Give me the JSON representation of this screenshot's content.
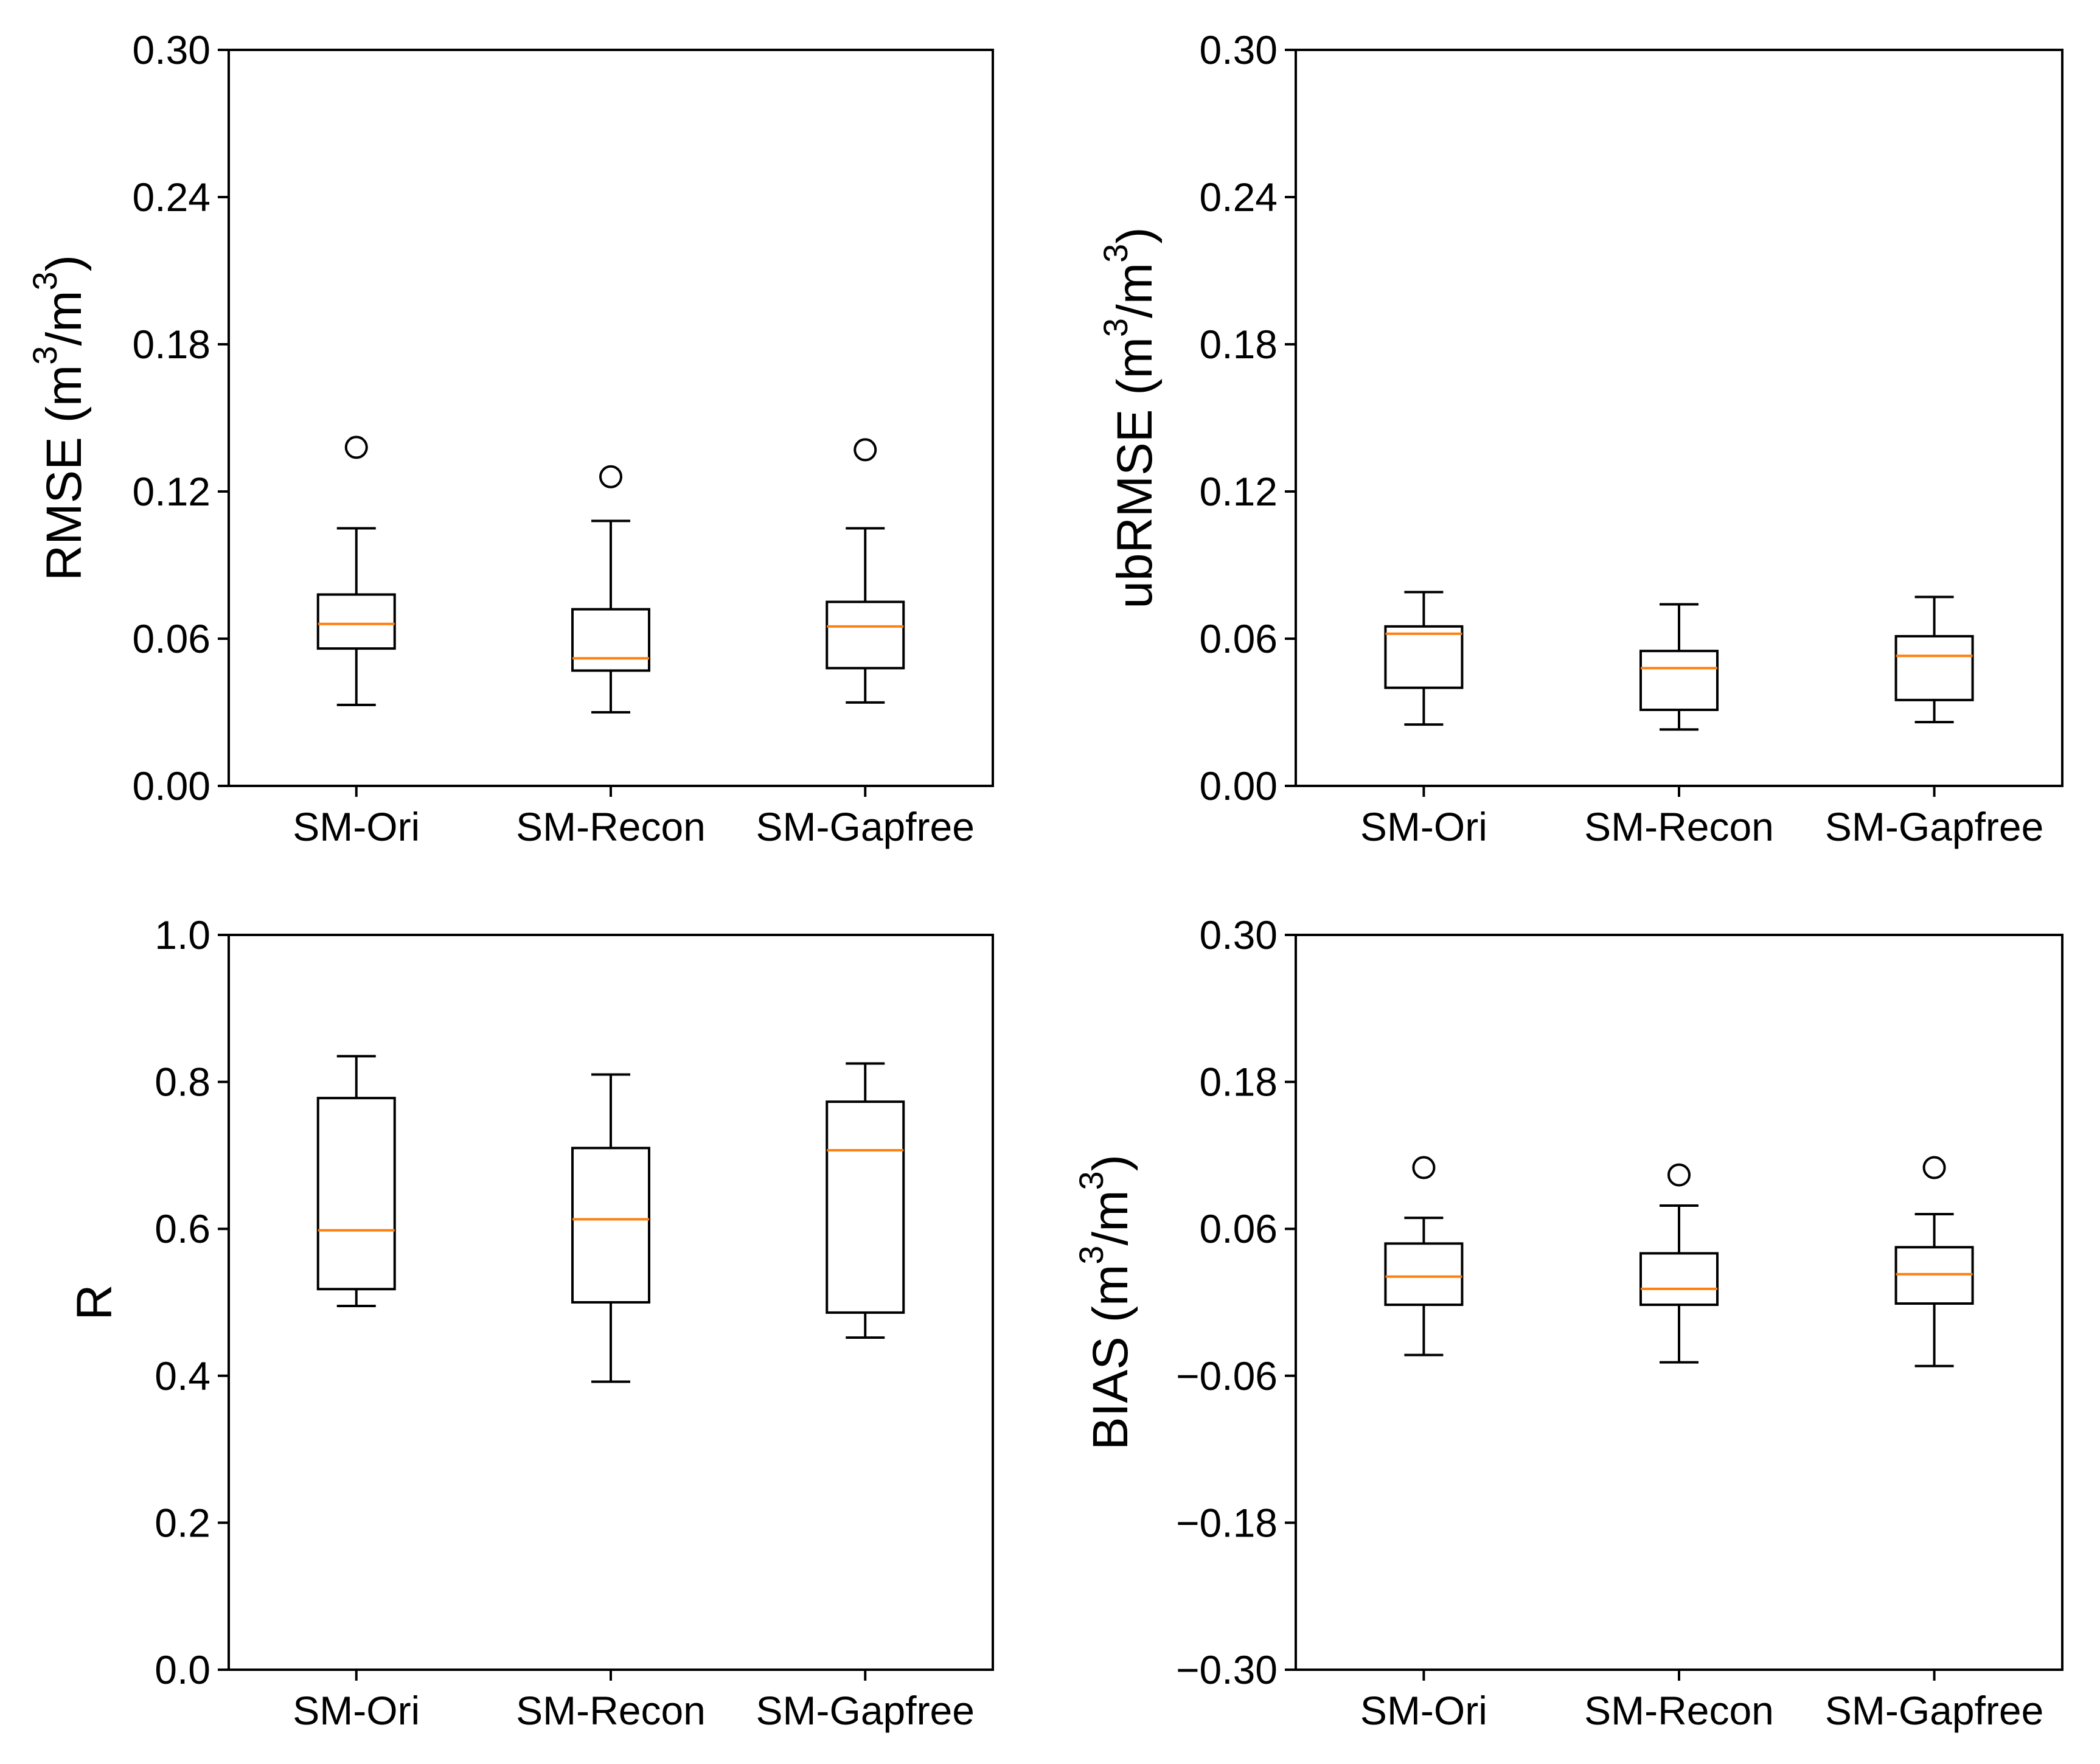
{
  "figure": {
    "colors": {
      "axis": "#000000",
      "box": "#000000",
      "median": "#ff7f0e",
      "background": "#ffffff"
    }
  },
  "chart_data": [
    {
      "id": "rmse",
      "type": "boxplot",
      "ylabel": {
        "main": "RMSE (m",
        "sup1": "3",
        "mid": "/m",
        "sup2": "3",
        "end": ")"
      },
      "ylim": [
        0.0,
        0.3
      ],
      "yticks": [
        0.0,
        0.06,
        0.12,
        0.18,
        0.24,
        0.3
      ],
      "ytick_labels": [
        "0.00",
        "0.06",
        "0.12",
        "0.18",
        "0.24",
        "0.30"
      ],
      "categories": [
        "SM-Ori",
        "SM-Recon",
        "SM-Gapfree"
      ],
      "boxes": [
        {
          "whislo": 0.033,
          "q1": 0.056,
          "med": 0.066,
          "q3": 0.078,
          "whishi": 0.105,
          "fliers": [
            0.138
          ]
        },
        {
          "whislo": 0.03,
          "q1": 0.047,
          "med": 0.052,
          "q3": 0.072,
          "whishi": 0.108,
          "fliers": [
            0.126
          ]
        },
        {
          "whislo": 0.034,
          "q1": 0.048,
          "med": 0.065,
          "q3": 0.075,
          "whishi": 0.105,
          "fliers": [
            0.137
          ]
        }
      ]
    },
    {
      "id": "ubrmse",
      "type": "boxplot",
      "ylabel": {
        "main": "ubRMSE (m",
        "sup1": "3",
        "mid": "/m",
        "sup2": "3",
        "end": ")"
      },
      "ylim": [
        0.0,
        0.3
      ],
      "yticks": [
        0.0,
        0.06,
        0.12,
        0.18,
        0.24,
        0.3
      ],
      "ytick_labels": [
        "0.00",
        "0.06",
        "0.12",
        "0.18",
        "0.24",
        "0.30"
      ],
      "categories": [
        "SM-Ori",
        "SM-Recon",
        "SM-Gapfree"
      ],
      "boxes": [
        {
          "whislo": 0.025,
          "q1": 0.04,
          "med": 0.062,
          "q3": 0.065,
          "whishi": 0.079,
          "fliers": []
        },
        {
          "whislo": 0.023,
          "q1": 0.031,
          "med": 0.048,
          "q3": 0.055,
          "whishi": 0.074,
          "fliers": []
        },
        {
          "whislo": 0.026,
          "q1": 0.035,
          "med": 0.053,
          "q3": 0.061,
          "whishi": 0.077,
          "fliers": []
        }
      ]
    },
    {
      "id": "r",
      "type": "boxplot",
      "ylabel": {
        "main": "R"
      },
      "ylim": [
        0.0,
        1.0
      ],
      "yticks": [
        0.0,
        0.2,
        0.4,
        0.6,
        0.8,
        1.0
      ],
      "ytick_labels": [
        "0.0",
        "0.2",
        "0.4",
        "0.6",
        "0.8",
        "1.0"
      ],
      "categories": [
        "SM-Ori",
        "SM-Recon",
        "SM-Gapfree"
      ],
      "boxes": [
        {
          "whislo": 0.495,
          "q1": 0.518,
          "med": 0.598,
          "q3": 0.778,
          "whishi": 0.835,
          "fliers": []
        },
        {
          "whislo": 0.392,
          "q1": 0.5,
          "med": 0.613,
          "q3": 0.71,
          "whishi": 0.81,
          "fliers": []
        },
        {
          "whislo": 0.452,
          "q1": 0.486,
          "med": 0.707,
          "q3": 0.773,
          "whishi": 0.825,
          "fliers": []
        }
      ]
    },
    {
      "id": "bias",
      "type": "boxplot",
      "ylabel": {
        "main": "BIAS (m",
        "sup1": "3",
        "mid": "/m",
        "sup2": "3",
        "end": ")"
      },
      "ylim": [
        -0.3,
        0.3
      ],
      "yticks": [
        -0.3,
        -0.18,
        -0.06,
        0.06,
        0.18,
        0.3
      ],
      "ytick_labels": [
        "−0.30",
        "−0.18",
        "−0.06",
        "0.06",
        "0.18",
        "0.30"
      ],
      "categories": [
        "SM-Ori",
        "SM-Recon",
        "SM-Gapfree"
      ],
      "boxes": [
        {
          "whislo": -0.043,
          "q1": -0.002,
          "med": 0.021,
          "q3": 0.048,
          "whishi": 0.069,
          "fliers": [
            0.11
          ]
        },
        {
          "whislo": -0.049,
          "q1": -0.002,
          "med": 0.011,
          "q3": 0.04,
          "whishi": 0.079,
          "fliers": [
            0.104
          ]
        },
        {
          "whislo": -0.052,
          "q1": -0.001,
          "med": 0.023,
          "q3": 0.045,
          "whishi": 0.072,
          "fliers": [
            0.11
          ]
        }
      ]
    }
  ]
}
